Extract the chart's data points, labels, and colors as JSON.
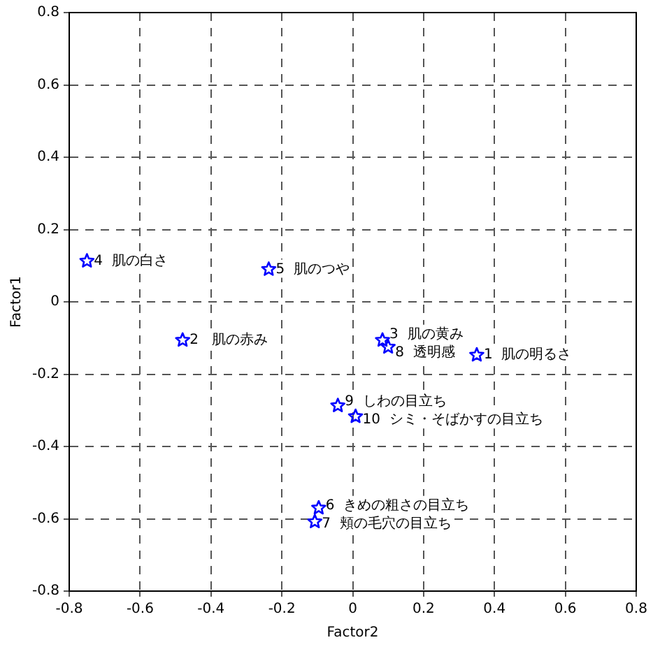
{
  "chart_data": {
    "type": "scatter",
    "xlabel": "Factor2",
    "ylabel": "Factor1",
    "x": [
      0.35,
      -0.48,
      0.084,
      -0.75,
      -0.237,
      -0.096,
      -0.107,
      0.1,
      -0.042,
      0.008
    ],
    "series": [
      {
        "color": "#0000ff",
        "values": [
          -0.147,
          -0.106,
          -0.106,
          0.113,
          0.09,
          -0.57,
          -0.608,
          -0.125,
          -0.287,
          -0.317
        ]
      }
    ],
    "annotations": [
      {
        "text": "1  肌の明るさ",
        "x": 0.35,
        "y": -0.147
      },
      {
        "text": "2   肌の赤み",
        "x": -0.48,
        "y": -0.106
      },
      {
        "text": "3  肌の黄み",
        "x": 0.084,
        "y": -0.106
      },
      {
        "text": "4  肌の白さ",
        "x": -0.75,
        "y": 0.113
      },
      {
        "text": "5  肌のつや",
        "x": -0.237,
        "y": 0.09
      },
      {
        "text": "6  きめの粗さの目立ち",
        "x": -0.096,
        "y": -0.57
      },
      {
        "text": "7  頬の毛穴の目立ち",
        "x": -0.107,
        "y": -0.608
      },
      {
        "text": "8  透明感",
        "x": 0.1,
        "y": -0.125
      },
      {
        "text": "9  しわの目立ち",
        "x": -0.042,
        "y": -0.287
      },
      {
        "text": "10  シミ・そばかすの目立ち",
        "x": 0.008,
        "y": -0.317
      }
    ],
    "xlim": [
      -0.8,
      0.8
    ],
    "xticks": [
      -0.8,
      -0.6,
      -0.4,
      -0.2,
      0,
      0.2,
      0.4,
      0.6,
      0.8
    ],
    "ylim": [
      -0.8,
      0.8
    ],
    "yticks": [
      -0.8,
      -0.6,
      -0.4,
      -0.2,
      0,
      0.2,
      0.4,
      0.6,
      0.8
    ],
    "grid": true,
    "marker": "star",
    "legend": false
  }
}
